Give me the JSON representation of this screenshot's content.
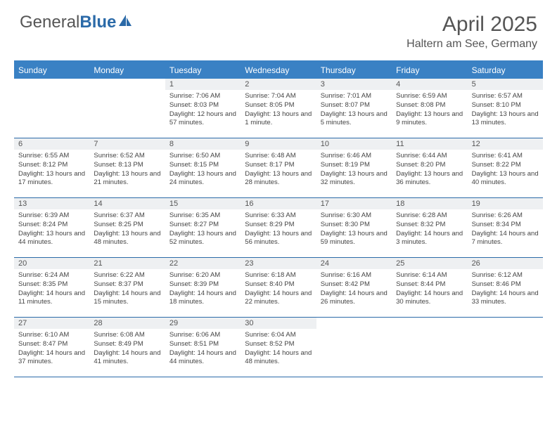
{
  "brand": {
    "part1": "General",
    "part2": "Blue"
  },
  "title": "April 2025",
  "location": "Haltern am See, Germany",
  "colors": {
    "header_bg": "#3a81c4",
    "header_text": "#ffffff",
    "row_divider": "#2b6aa8",
    "daynum_bg": "#eef0f2",
    "body_text": "#444444",
    "title_text": "#555555"
  },
  "day_names": [
    "Sunday",
    "Monday",
    "Tuesday",
    "Wednesday",
    "Thursday",
    "Friday",
    "Saturday"
  ],
  "weeks": [
    [
      null,
      null,
      {
        "n": "1",
        "sr": "7:06 AM",
        "ss": "8:03 PM",
        "dl": "12 hours and 57 minutes."
      },
      {
        "n": "2",
        "sr": "7:04 AM",
        "ss": "8:05 PM",
        "dl": "13 hours and 1 minute."
      },
      {
        "n": "3",
        "sr": "7:01 AM",
        "ss": "8:07 PM",
        "dl": "13 hours and 5 minutes."
      },
      {
        "n": "4",
        "sr": "6:59 AM",
        "ss": "8:08 PM",
        "dl": "13 hours and 9 minutes."
      },
      {
        "n": "5",
        "sr": "6:57 AM",
        "ss": "8:10 PM",
        "dl": "13 hours and 13 minutes."
      }
    ],
    [
      {
        "n": "6",
        "sr": "6:55 AM",
        "ss": "8:12 PM",
        "dl": "13 hours and 17 minutes."
      },
      {
        "n": "7",
        "sr": "6:52 AM",
        "ss": "8:13 PM",
        "dl": "13 hours and 21 minutes."
      },
      {
        "n": "8",
        "sr": "6:50 AM",
        "ss": "8:15 PM",
        "dl": "13 hours and 24 minutes."
      },
      {
        "n": "9",
        "sr": "6:48 AM",
        "ss": "8:17 PM",
        "dl": "13 hours and 28 minutes."
      },
      {
        "n": "10",
        "sr": "6:46 AM",
        "ss": "8:19 PM",
        "dl": "13 hours and 32 minutes."
      },
      {
        "n": "11",
        "sr": "6:44 AM",
        "ss": "8:20 PM",
        "dl": "13 hours and 36 minutes."
      },
      {
        "n": "12",
        "sr": "6:41 AM",
        "ss": "8:22 PM",
        "dl": "13 hours and 40 minutes."
      }
    ],
    [
      {
        "n": "13",
        "sr": "6:39 AM",
        "ss": "8:24 PM",
        "dl": "13 hours and 44 minutes."
      },
      {
        "n": "14",
        "sr": "6:37 AM",
        "ss": "8:25 PM",
        "dl": "13 hours and 48 minutes."
      },
      {
        "n": "15",
        "sr": "6:35 AM",
        "ss": "8:27 PM",
        "dl": "13 hours and 52 minutes."
      },
      {
        "n": "16",
        "sr": "6:33 AM",
        "ss": "8:29 PM",
        "dl": "13 hours and 56 minutes."
      },
      {
        "n": "17",
        "sr": "6:30 AM",
        "ss": "8:30 PM",
        "dl": "13 hours and 59 minutes."
      },
      {
        "n": "18",
        "sr": "6:28 AM",
        "ss": "8:32 PM",
        "dl": "14 hours and 3 minutes."
      },
      {
        "n": "19",
        "sr": "6:26 AM",
        "ss": "8:34 PM",
        "dl": "14 hours and 7 minutes."
      }
    ],
    [
      {
        "n": "20",
        "sr": "6:24 AM",
        "ss": "8:35 PM",
        "dl": "14 hours and 11 minutes."
      },
      {
        "n": "21",
        "sr": "6:22 AM",
        "ss": "8:37 PM",
        "dl": "14 hours and 15 minutes."
      },
      {
        "n": "22",
        "sr": "6:20 AM",
        "ss": "8:39 PM",
        "dl": "14 hours and 18 minutes."
      },
      {
        "n": "23",
        "sr": "6:18 AM",
        "ss": "8:40 PM",
        "dl": "14 hours and 22 minutes."
      },
      {
        "n": "24",
        "sr": "6:16 AM",
        "ss": "8:42 PM",
        "dl": "14 hours and 26 minutes."
      },
      {
        "n": "25",
        "sr": "6:14 AM",
        "ss": "8:44 PM",
        "dl": "14 hours and 30 minutes."
      },
      {
        "n": "26",
        "sr": "6:12 AM",
        "ss": "8:46 PM",
        "dl": "14 hours and 33 minutes."
      }
    ],
    [
      {
        "n": "27",
        "sr": "6:10 AM",
        "ss": "8:47 PM",
        "dl": "14 hours and 37 minutes."
      },
      {
        "n": "28",
        "sr": "6:08 AM",
        "ss": "8:49 PM",
        "dl": "14 hours and 41 minutes."
      },
      {
        "n": "29",
        "sr": "6:06 AM",
        "ss": "8:51 PM",
        "dl": "14 hours and 44 minutes."
      },
      {
        "n": "30",
        "sr": "6:04 AM",
        "ss": "8:52 PM",
        "dl": "14 hours and 48 minutes."
      },
      null,
      null,
      null
    ]
  ],
  "labels": {
    "sunrise": "Sunrise:",
    "sunset": "Sunset:",
    "daylight": "Daylight:"
  }
}
